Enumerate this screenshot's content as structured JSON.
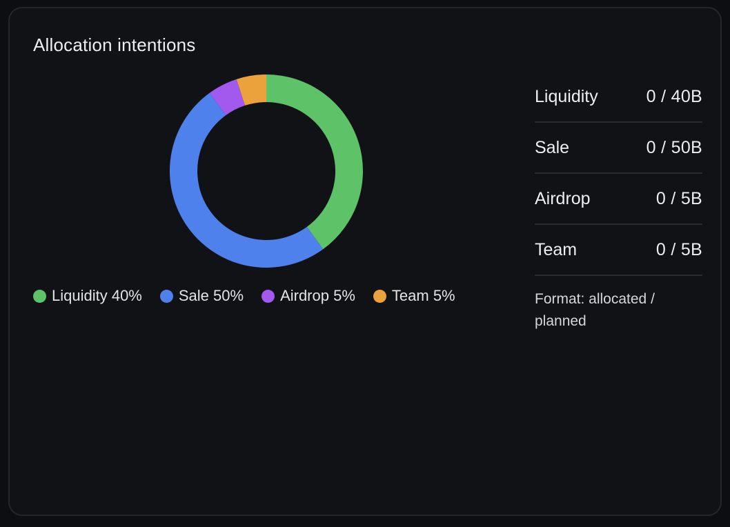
{
  "title": "Allocation intentions",
  "chart_data": {
    "type": "pie",
    "categories": [
      "Liquidity",
      "Sale",
      "Airdrop",
      "Team"
    ],
    "values": [
      40,
      50,
      5,
      5
    ],
    "colors": [
      "#5ec269",
      "#4f81ec",
      "#a259ee",
      "#eba23d"
    ],
    "title": "",
    "legend": "bottom"
  },
  "legend": [
    {
      "label": "Liquidity 40%",
      "color": "#5ec269"
    },
    {
      "label": "Sale 50%",
      "color": "#4f81ec"
    },
    {
      "label": "Airdrop 5%",
      "color": "#a259ee"
    },
    {
      "label": "Team 5%",
      "color": "#eba23d"
    }
  ],
  "allocation_table": [
    {
      "name": "Liquidity",
      "value": "0 / 40B"
    },
    {
      "name": "Sale",
      "value": "0 / 50B"
    },
    {
      "name": "Airdrop",
      "value": "0 / 5B"
    },
    {
      "name": "Team",
      "value": "0 / 5B"
    }
  ],
  "format_note": "Format: allocated / planned"
}
